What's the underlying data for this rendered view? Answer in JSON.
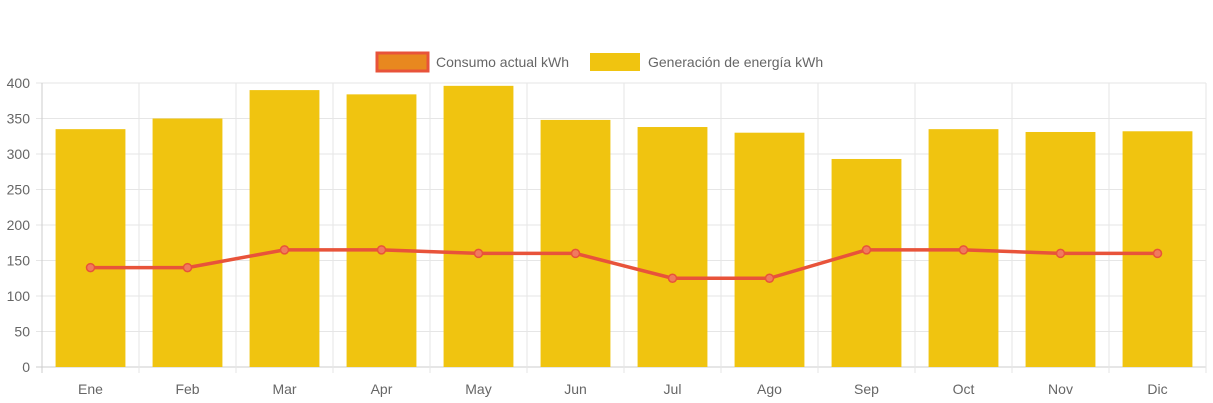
{
  "chart_data": {
    "type": "bar",
    "categories": [
      "Ene",
      "Feb",
      "Mar",
      "Apr",
      "May",
      "Jun",
      "Jul",
      "Ago",
      "Sep",
      "Oct",
      "Nov",
      "Dic"
    ],
    "series": [
      {
        "name": "Consumo actual kWh",
        "type": "line",
        "values": [
          140,
          140,
          165,
          165,
          160,
          160,
          125,
          125,
          165,
          165,
          160,
          160
        ],
        "color": "#e8533a",
        "legend_fill": "#e8881f"
      },
      {
        "name": "Generación de energía kWh",
        "type": "bar",
        "values": [
          335,
          350,
          390,
          384,
          396,
          348,
          338,
          330,
          293,
          335,
          331,
          332
        ],
        "color": "#f0c410"
      }
    ],
    "title": "",
    "xlabel": "",
    "ylabel": "",
    "ylim": [
      0,
      400
    ],
    "yticks": [
      "0",
      "50",
      "100",
      "150",
      "200",
      "250",
      "300",
      "350",
      "400"
    ],
    "grid": true,
    "legend_position": "top-center"
  }
}
